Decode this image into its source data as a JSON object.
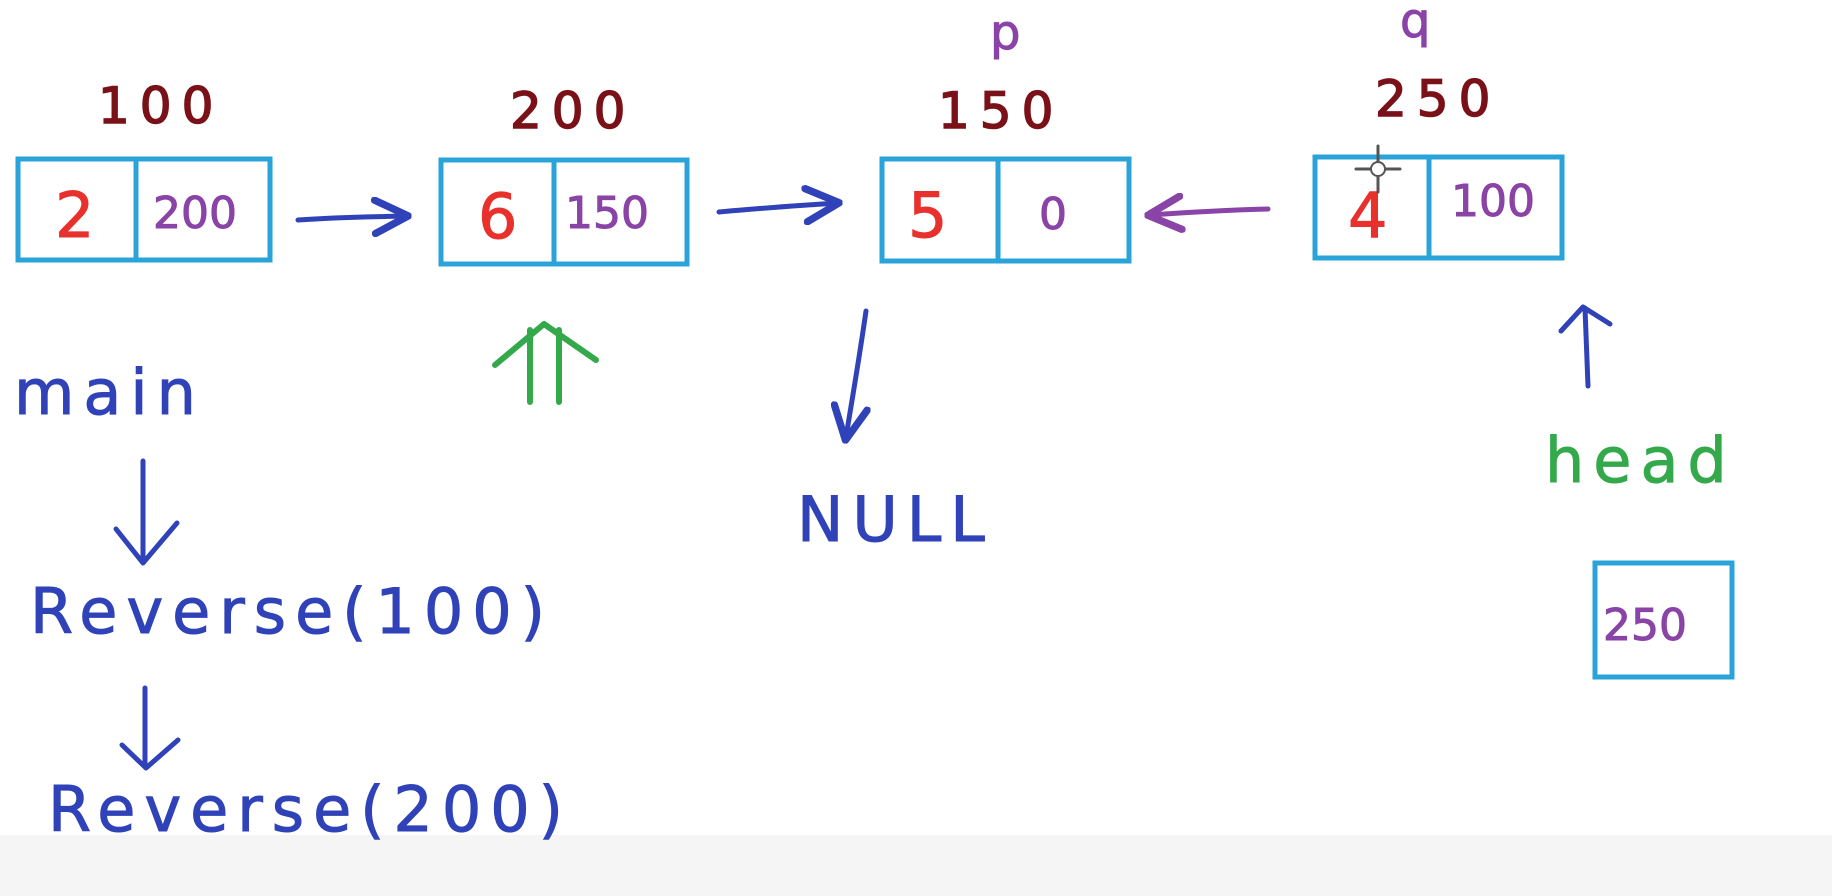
{
  "nodes": [
    {
      "address": "100",
      "data": "2",
      "next": "200"
    },
    {
      "address": "200",
      "data": "6",
      "next": "150"
    },
    {
      "address": "150",
      "data": "5",
      "next": "0"
    },
    {
      "address": "250",
      "data": "4",
      "next": "100"
    }
  ],
  "pointer_labels": {
    "p": "p",
    "q": "q"
  },
  "null_label": "NULL",
  "call_stack": {
    "main": "main",
    "reverse_100": "Reverse(100)",
    "reverse_200": "Reverse(200)"
  },
  "head": {
    "label": "head",
    "value": "250"
  },
  "colors": {
    "box": "#2aa4d8",
    "address": "#7a1018",
    "data": "#e8302d",
    "pointer": "#8a43a7",
    "blue": "#3042b8",
    "green": "#34a94b"
  }
}
